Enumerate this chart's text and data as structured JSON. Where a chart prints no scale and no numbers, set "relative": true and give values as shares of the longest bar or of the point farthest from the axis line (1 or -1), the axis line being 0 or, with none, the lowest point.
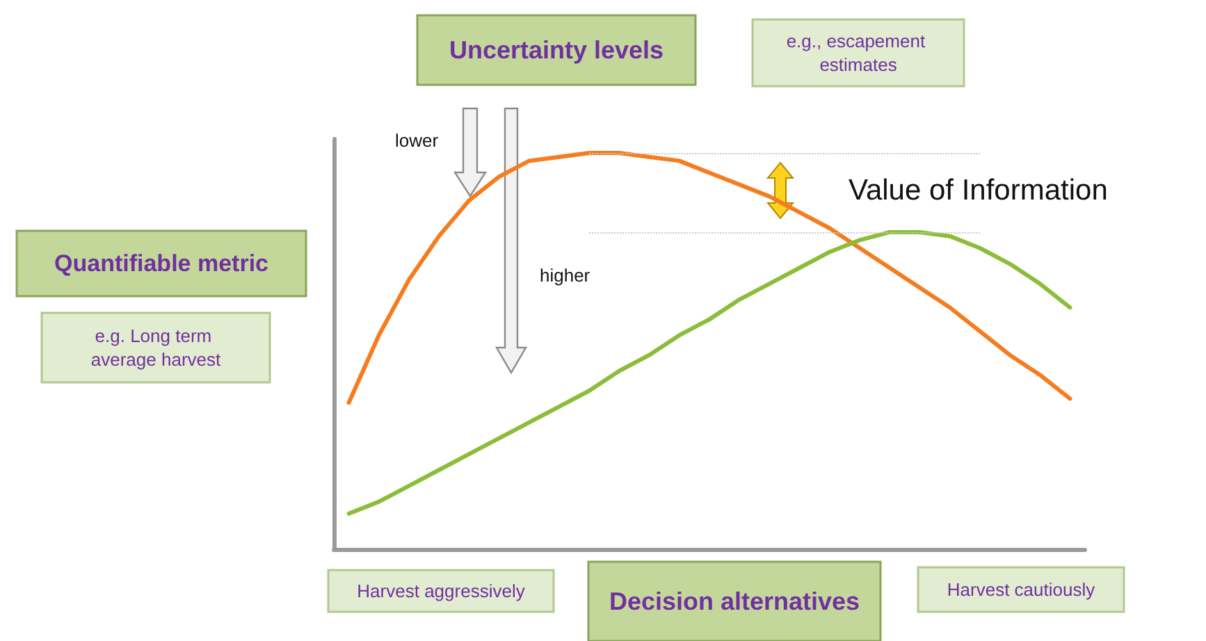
{
  "chart_data": {
    "type": "line",
    "relative": true,
    "title": "Uncertainty levels",
    "xlabel": "Decision alternatives",
    "ylabel": "Quantifiable metric",
    "marker": "none",
    "line_style": "solid",
    "categories": [
      null,
      null,
      null,
      null,
      null,
      null,
      null,
      null,
      null,
      null,
      null,
      null,
      null,
      null,
      null,
      null,
      null,
      null,
      null,
      null,
      null,
      null,
      null,
      null,
      null
    ],
    "series": [
      {
        "color": "#f57c1f",
        "values": [
          0.37,
          0.54,
          0.68,
          0.79,
          0.88,
          0.94,
          0.98,
          0.99,
          1,
          1,
          0.99,
          0.98,
          0.95,
          0.92,
          0.89,
          0.85,
          0.81,
          0.76,
          0.71,
          0.66,
          0.61,
          0.55,
          0.49,
          0.44,
          0.38
        ]
      },
      {
        "color": "#8cbd3a",
        "values": [
          0.09,
          0.12,
          0.16,
          0.2,
          0.24,
          0.28,
          0.32,
          0.36,
          0.4,
          0.45,
          0.49,
          0.54,
          0.58,
          0.63,
          0.67,
          0.71,
          0.75,
          0.78,
          0.8,
          0.8,
          0.79,
          0.76,
          0.72,
          0.67,
          0.61
        ]
      }
    ],
    "ref_lines": [
      {
        "axis": "y",
        "value": 1,
        "color": "#c8c8c8",
        "line_style": "dotted"
      },
      {
        "axis": "y",
        "value": 0.8,
        "color": "#c8c8c8",
        "line_style": "dotted"
      }
    ],
    "annotations": [
      "e.g., escapement estimates",
      "e.g. Long term average harvest",
      "Harvest aggressively",
      "Harvest cautiously",
      "lower",
      "higher",
      "Value of Information"
    ]
  }
}
